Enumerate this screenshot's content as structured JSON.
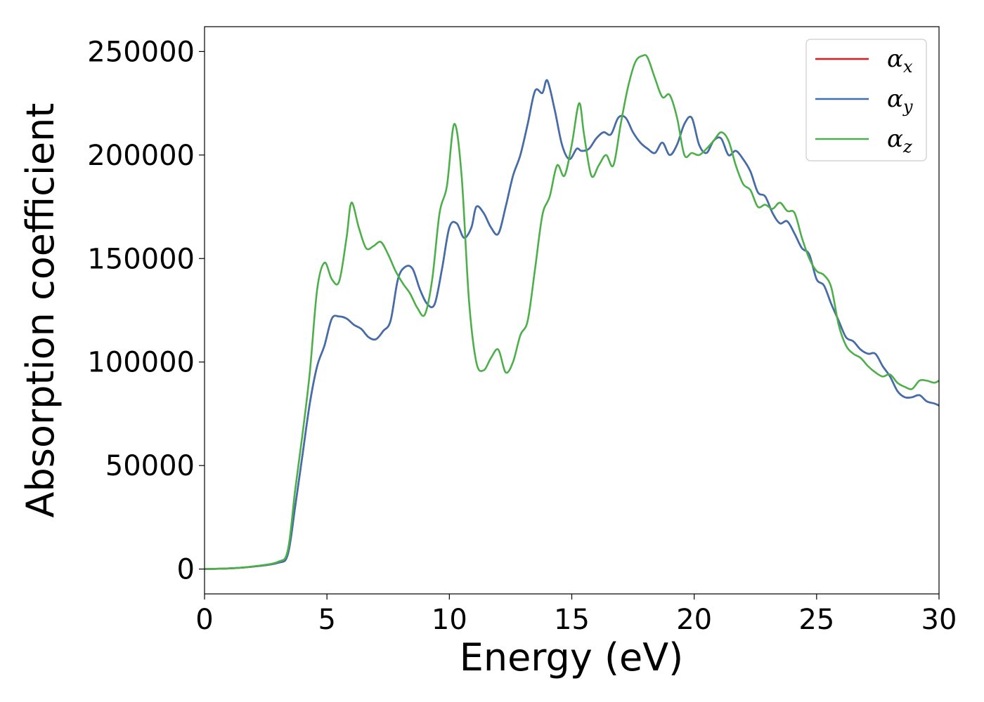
{
  "chart_data": {
    "type": "line",
    "xlabel": "Energy (eV)",
    "ylabel": "Absorption coefficient",
    "xlim": [
      0,
      30
    ],
    "ylim": [
      -12000,
      262000
    ],
    "xticks": [
      0,
      5,
      10,
      15,
      20,
      25,
      30
    ],
    "yticks": [
      0,
      50000,
      100000,
      150000,
      200000,
      250000
    ],
    "grid": false,
    "legend_position": "top-right",
    "series": [
      {
        "name": "α",
        "subscript": "x",
        "color": "#e41a1c",
        "x": [
          0,
          1,
          2,
          3,
          3.4,
          3.7,
          4.0,
          4.3,
          4.6,
          4.9,
          5.2,
          5.5,
          5.8,
          6.1,
          6.4,
          6.7,
          7.0,
          7.3,
          7.6,
          7.9,
          8.2,
          8.5,
          8.8,
          9.1,
          9.4,
          9.7,
          10.0,
          10.3,
          10.6,
          10.9,
          11.1,
          11.4,
          11.7,
          12.0,
          12.3,
          12.6,
          12.9,
          13.2,
          13.5,
          13.8,
          14.0,
          14.3,
          14.6,
          14.9,
          15.2,
          15.4,
          15.7,
          16.0,
          16.3,
          16.6,
          16.9,
          17.2,
          17.5,
          17.8,
          18.1,
          18.4,
          18.7,
          19.0,
          19.3,
          19.6,
          19.9,
          20.2,
          20.5,
          20.8,
          21.1,
          21.4,
          21.7,
          22.0,
          22.3,
          22.6,
          22.9,
          23.2,
          23.5,
          23.8,
          24.1,
          24.4,
          24.7,
          25.0,
          25.3,
          25.6,
          25.9,
          26.2,
          26.5,
          26.8,
          27.1,
          27.4,
          27.7,
          28.0,
          28.3,
          28.6,
          28.9,
          29.2,
          29.5,
          29.8,
          30.0
        ],
        "values": [
          0,
          300,
          1200,
          3000,
          7000,
          30000,
          55000,
          80000,
          98000,
          108000,
          121000,
          122000,
          121000,
          118000,
          116000,
          112000,
          111000,
          115000,
          120000,
          140000,
          146000,
          145000,
          135000,
          128000,
          128000,
          145000,
          165000,
          167000,
          160000,
          165000,
          175000,
          172000,
          165000,
          162000,
          175000,
          190000,
          200000,
          215000,
          231000,
          230000,
          236000,
          222000,
          205000,
          198000,
          203000,
          202000,
          203000,
          208000,
          211000,
          210000,
          218000,
          218000,
          211000,
          206000,
          203000,
          201000,
          206000,
          200000,
          205000,
          215000,
          218000,
          205000,
          201000,
          207000,
          208000,
          200000,
          202000,
          198000,
          192000,
          182000,
          180000,
          172000,
          167000,
          168000,
          162000,
          155000,
          152000,
          140000,
          137000,
          128000,
          120000,
          112000,
          110000,
          106000,
          104000,
          104000,
          98000,
          93000,
          86000,
          83000,
          83000,
          84000,
          81000,
          80000,
          79000
        ]
      },
      {
        "name": "α",
        "subscript": "y",
        "color": "#3d70ad",
        "x": [
          0,
          1,
          2,
          3,
          3.4,
          3.7,
          4.0,
          4.3,
          4.6,
          4.9,
          5.2,
          5.5,
          5.8,
          6.1,
          6.4,
          6.7,
          7.0,
          7.3,
          7.6,
          7.9,
          8.2,
          8.5,
          8.8,
          9.1,
          9.4,
          9.7,
          10.0,
          10.3,
          10.6,
          10.9,
          11.1,
          11.4,
          11.7,
          12.0,
          12.3,
          12.6,
          12.9,
          13.2,
          13.5,
          13.8,
          14.0,
          14.3,
          14.6,
          14.9,
          15.2,
          15.4,
          15.7,
          16.0,
          16.3,
          16.6,
          16.9,
          17.2,
          17.5,
          17.8,
          18.1,
          18.4,
          18.7,
          19.0,
          19.3,
          19.6,
          19.9,
          20.2,
          20.5,
          20.8,
          21.1,
          21.4,
          21.7,
          22.0,
          22.3,
          22.6,
          22.9,
          23.2,
          23.5,
          23.8,
          24.1,
          24.4,
          24.7,
          25.0,
          25.3,
          25.6,
          25.9,
          26.2,
          26.5,
          26.8,
          27.1,
          27.4,
          27.7,
          28.0,
          28.3,
          28.6,
          28.9,
          29.2,
          29.5,
          29.8,
          30.0
        ],
        "values": [
          0,
          300,
          1200,
          3000,
          7000,
          30000,
          55000,
          80000,
          98000,
          108000,
          121000,
          122000,
          121000,
          118000,
          116000,
          112000,
          111000,
          115000,
          120000,
          140000,
          146000,
          145000,
          135000,
          128000,
          128000,
          145000,
          165000,
          167000,
          160000,
          165000,
          175000,
          172000,
          165000,
          162000,
          175000,
          190000,
          200000,
          215000,
          231000,
          230000,
          236000,
          222000,
          205000,
          198000,
          203000,
          202000,
          203000,
          208000,
          211000,
          210000,
          218000,
          218000,
          211000,
          206000,
          203000,
          201000,
          206000,
          200000,
          205000,
          215000,
          218000,
          205000,
          201000,
          207000,
          208000,
          200000,
          202000,
          198000,
          192000,
          182000,
          180000,
          172000,
          167000,
          168000,
          162000,
          155000,
          152000,
          140000,
          137000,
          128000,
          120000,
          112000,
          110000,
          106000,
          104000,
          104000,
          98000,
          93000,
          86000,
          83000,
          83000,
          84000,
          81000,
          80000,
          79000
        ]
      },
      {
        "name": "α",
        "subscript": "z",
        "color": "#4daf4a",
        "x": [
          0,
          1,
          2,
          3,
          3.4,
          3.7,
          4.0,
          4.3,
          4.6,
          4.9,
          5.2,
          5.5,
          5.8,
          6.0,
          6.3,
          6.6,
          6.9,
          7.2,
          7.5,
          7.8,
          8.1,
          8.4,
          8.7,
          9.0,
          9.3,
          9.6,
          9.9,
          10.2,
          10.5,
          10.8,
          11.1,
          11.4,
          11.7,
          12.0,
          12.3,
          12.6,
          12.9,
          13.2,
          13.5,
          13.8,
          14.1,
          14.4,
          14.7,
          15.0,
          15.3,
          15.5,
          15.8,
          16.1,
          16.4,
          16.7,
          17.0,
          17.3,
          17.6,
          17.9,
          18.1,
          18.4,
          18.7,
          19.0,
          19.3,
          19.6,
          19.9,
          20.2,
          20.5,
          20.8,
          21.1,
          21.4,
          21.7,
          22.0,
          22.3,
          22.6,
          22.9,
          23.2,
          23.5,
          23.8,
          24.1,
          24.4,
          24.7,
          25.0,
          25.3,
          25.6,
          25.9,
          26.2,
          26.5,
          26.8,
          27.1,
          27.4,
          27.7,
          28.0,
          28.3,
          28.6,
          28.9,
          29.2,
          29.5,
          29.8,
          30.0
        ],
        "values": [
          0,
          300,
          1300,
          3500,
          9000,
          38000,
          65000,
          95000,
          135000,
          148000,
          140000,
          139000,
          160000,
          177000,
          165000,
          155000,
          156000,
          158000,
          152000,
          144000,
          138000,
          133000,
          126000,
          123000,
          140000,
          172000,
          185000,
          215000,
          190000,
          130000,
          100000,
          96000,
          102000,
          106000,
          95000,
          100000,
          113000,
          120000,
          145000,
          171000,
          180000,
          195000,
          190000,
          205000,
          225000,
          210000,
          190000,
          195000,
          200000,
          195000,
          215000,
          233000,
          245000,
          248000,
          247000,
          237000,
          228000,
          229000,
          218000,
          200000,
          201000,
          200000,
          203000,
          207000,
          211000,
          207000,
          195000,
          186000,
          183000,
          175000,
          176000,
          174000,
          177000,
          173000,
          172000,
          160000,
          150000,
          144000,
          142000,
          136000,
          118000,
          108000,
          104000,
          102000,
          98000,
          95000,
          93000,
          94000,
          90000,
          88000,
          87000,
          91000,
          91000,
          90000,
          91000
        ]
      }
    ]
  }
}
